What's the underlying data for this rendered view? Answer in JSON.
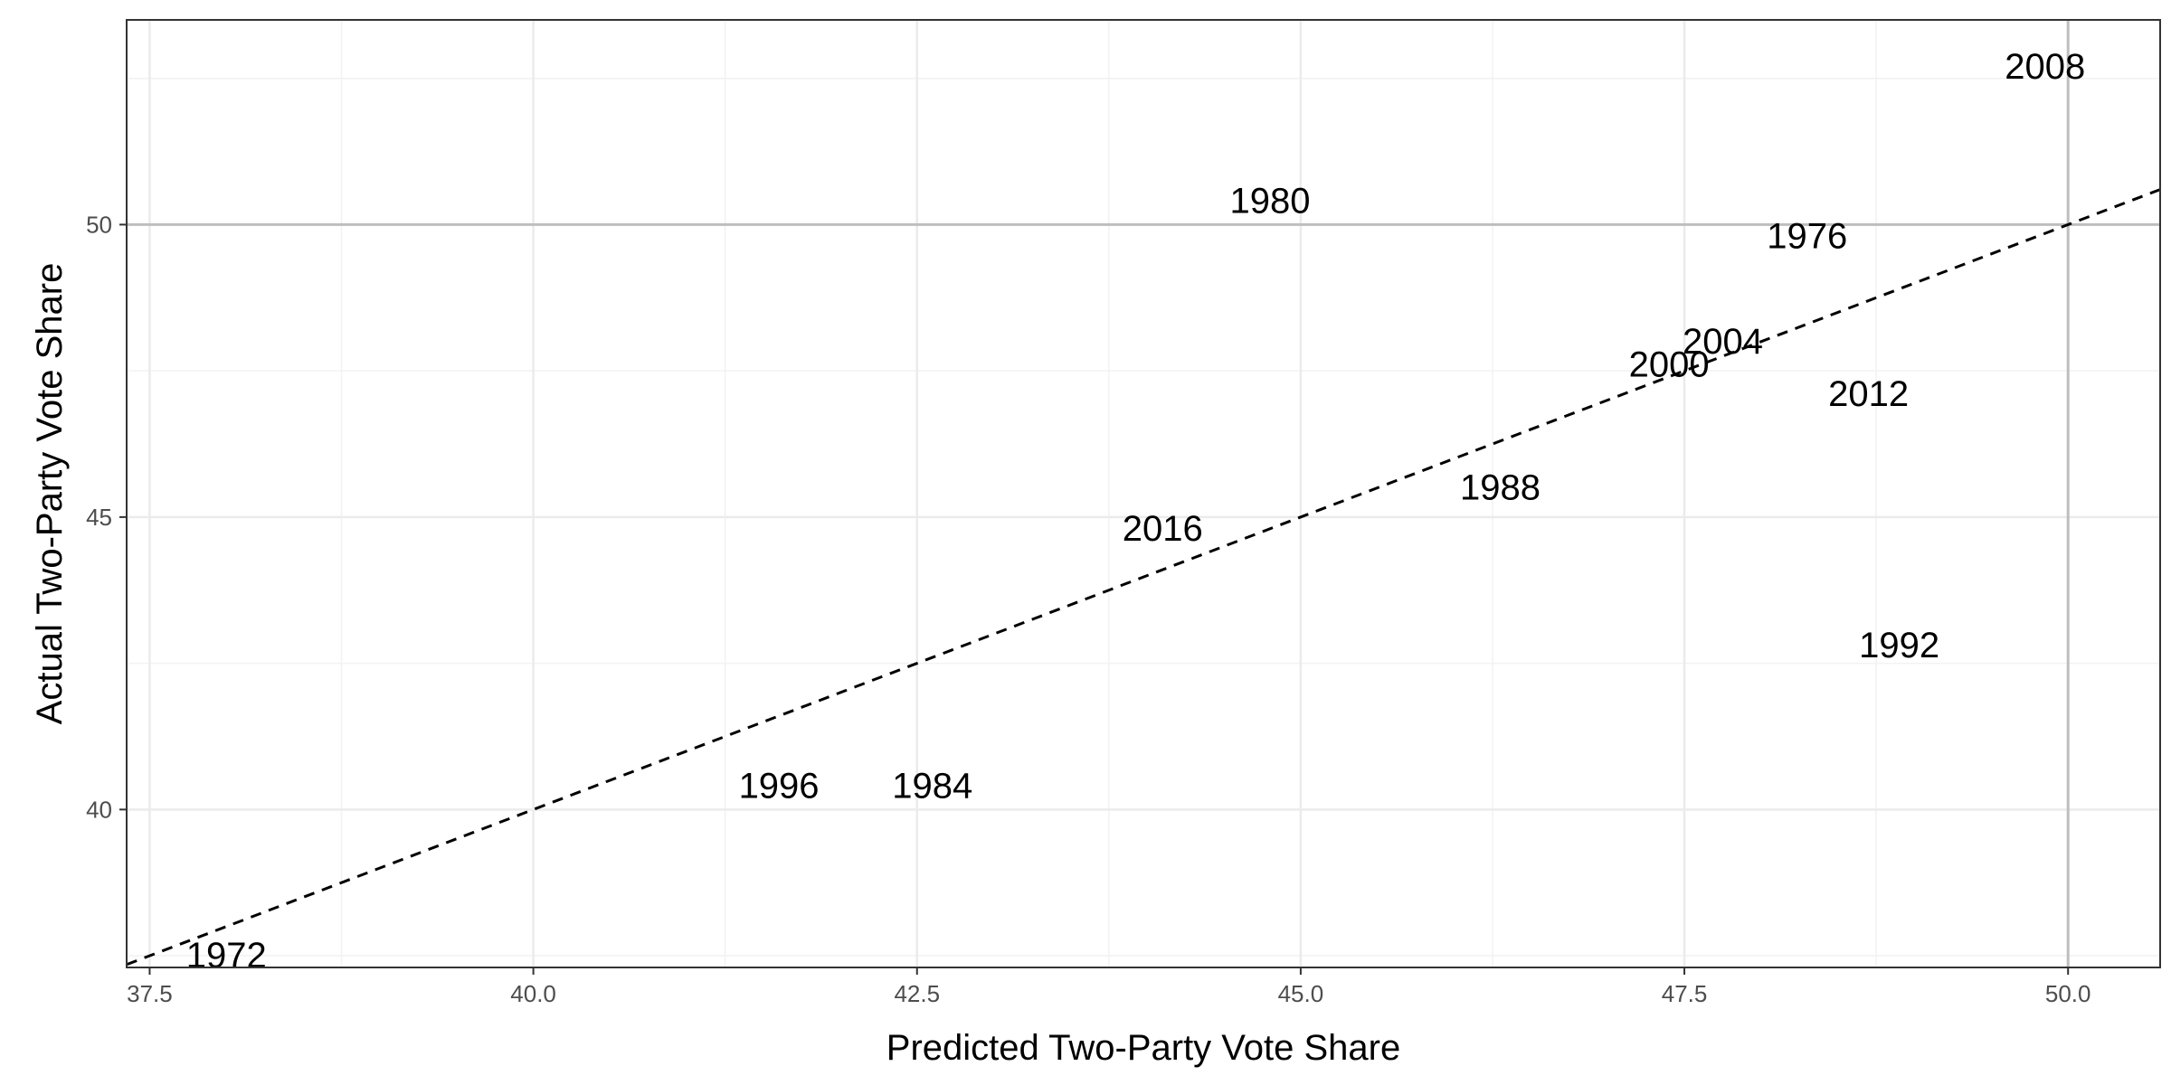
{
  "chart_data": {
    "type": "scatter",
    "title": "",
    "xlabel": "Predicted Two-Party Vote Share",
    "ylabel": "Actual Two-Party Vote Share",
    "xlim": [
      37.35,
      50.6
    ],
    "ylim": [
      37.3,
      53.5
    ],
    "x_ticks": [
      37.5,
      40.0,
      42.5,
      45.0,
      47.5,
      50.0
    ],
    "x_tick_labels": [
      "37.5",
      "40.0",
      "42.5",
      "45.0",
      "47.5",
      "50.0"
    ],
    "y_ticks": [
      40,
      45,
      50
    ],
    "y_tick_labels": [
      "40",
      "45",
      "50"
    ],
    "grid": true,
    "reference_lines": {
      "horizontal": 50,
      "vertical": 50,
      "diagonal": "y = x (dashed)"
    },
    "points": [
      {
        "label": "1972",
        "x": 38.0,
        "y": 37.5
      },
      {
        "label": "1976",
        "x": 48.3,
        "y": 49.8
      },
      {
        "label": "1980",
        "x": 44.8,
        "y": 50.4
      },
      {
        "label": "1984",
        "x": 42.6,
        "y": 40.4
      },
      {
        "label": "1988",
        "x": 46.3,
        "y": 45.5
      },
      {
        "label": "1992",
        "x": 48.9,
        "y": 42.8
      },
      {
        "label": "1996",
        "x": 41.6,
        "y": 40.4
      },
      {
        "label": "2000",
        "x": 47.4,
        "y": 47.6
      },
      {
        "label": "2004",
        "x": 47.75,
        "y": 48.0
      },
      {
        "label": "2008",
        "x": 49.85,
        "y": 52.7
      },
      {
        "label": "2012",
        "x": 48.7,
        "y": 47.1
      },
      {
        "label": "2016",
        "x": 44.1,
        "y": 44.8
      }
    ]
  }
}
